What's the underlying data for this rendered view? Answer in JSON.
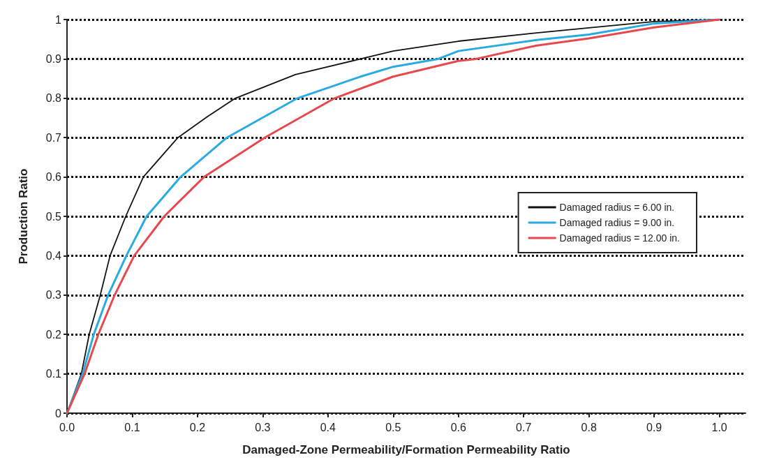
{
  "chart_data": {
    "type": "line",
    "xlabel": "Damaged-Zone Permeability/Formation Permeability Ratio",
    "ylabel": "Production Ratio",
    "xlim": [
      0,
      1.04
    ],
    "ylim": [
      0,
      1
    ],
    "xticks": [
      {
        "value": 0,
        "label": "0.0"
      },
      0.1,
      0.2,
      0.3,
      0.4,
      0.5,
      0.6,
      0.7,
      0.8,
      0.9,
      {
        "value": 1,
        "label": "1.0"
      }
    ],
    "yticks": [
      0,
      0.1,
      0.2,
      0.3,
      0.4,
      0.5,
      0.6,
      0.7,
      0.8,
      0.9,
      1
    ],
    "grid": "y",
    "legend": "right",
    "marker": "none",
    "line_style": "solid",
    "series": [
      {
        "name": "Damaged radius = 6.00 in.",
        "color": "#111111",
        "x": [
          0,
          0.022,
          0.034,
          0.051,
          0.066,
          0.09,
          0.117,
          0.17,
          0.215,
          0.258,
          0.35,
          0.45,
          0.5,
          0.6,
          0.72,
          0.8,
          0.9,
          1
        ],
        "values": [
          0,
          0.1,
          0.2,
          0.3,
          0.4,
          0.5,
          0.6,
          0.7,
          0.753,
          0.8,
          0.86,
          0.9,
          0.92,
          0.945,
          0.966,
          0.979,
          0.995,
          1
        ]
      },
      {
        "name": "Damaged radius = 9.00 in.",
        "color": "#29abe2",
        "x": [
          0,
          0.024,
          0.041,
          0.063,
          0.091,
          0.122,
          0.174,
          0.245,
          0.353,
          0.45,
          0.5,
          0.569,
          0.6,
          0.72,
          0.8,
          0.9,
          1
        ],
        "values": [
          0,
          0.1,
          0.2,
          0.3,
          0.4,
          0.5,
          0.6,
          0.7,
          0.8,
          0.855,
          0.88,
          0.9,
          0.92,
          0.948,
          0.962,
          0.99,
          1
        ]
      },
      {
        "name": "Damaged radius = 12.00 in.",
        "color": "#e8474c",
        "x": [
          0,
          0.027,
          0.048,
          0.073,
          0.103,
          0.149,
          0.21,
          0.303,
          0.41,
          0.5,
          0.6,
          0.627,
          0.72,
          0.8,
          0.9,
          1
        ],
        "values": [
          0,
          0.1,
          0.2,
          0.3,
          0.4,
          0.5,
          0.6,
          0.7,
          0.8,
          0.855,
          0.895,
          0.9,
          0.934,
          0.952,
          0.98,
          1
        ]
      }
    ]
  }
}
